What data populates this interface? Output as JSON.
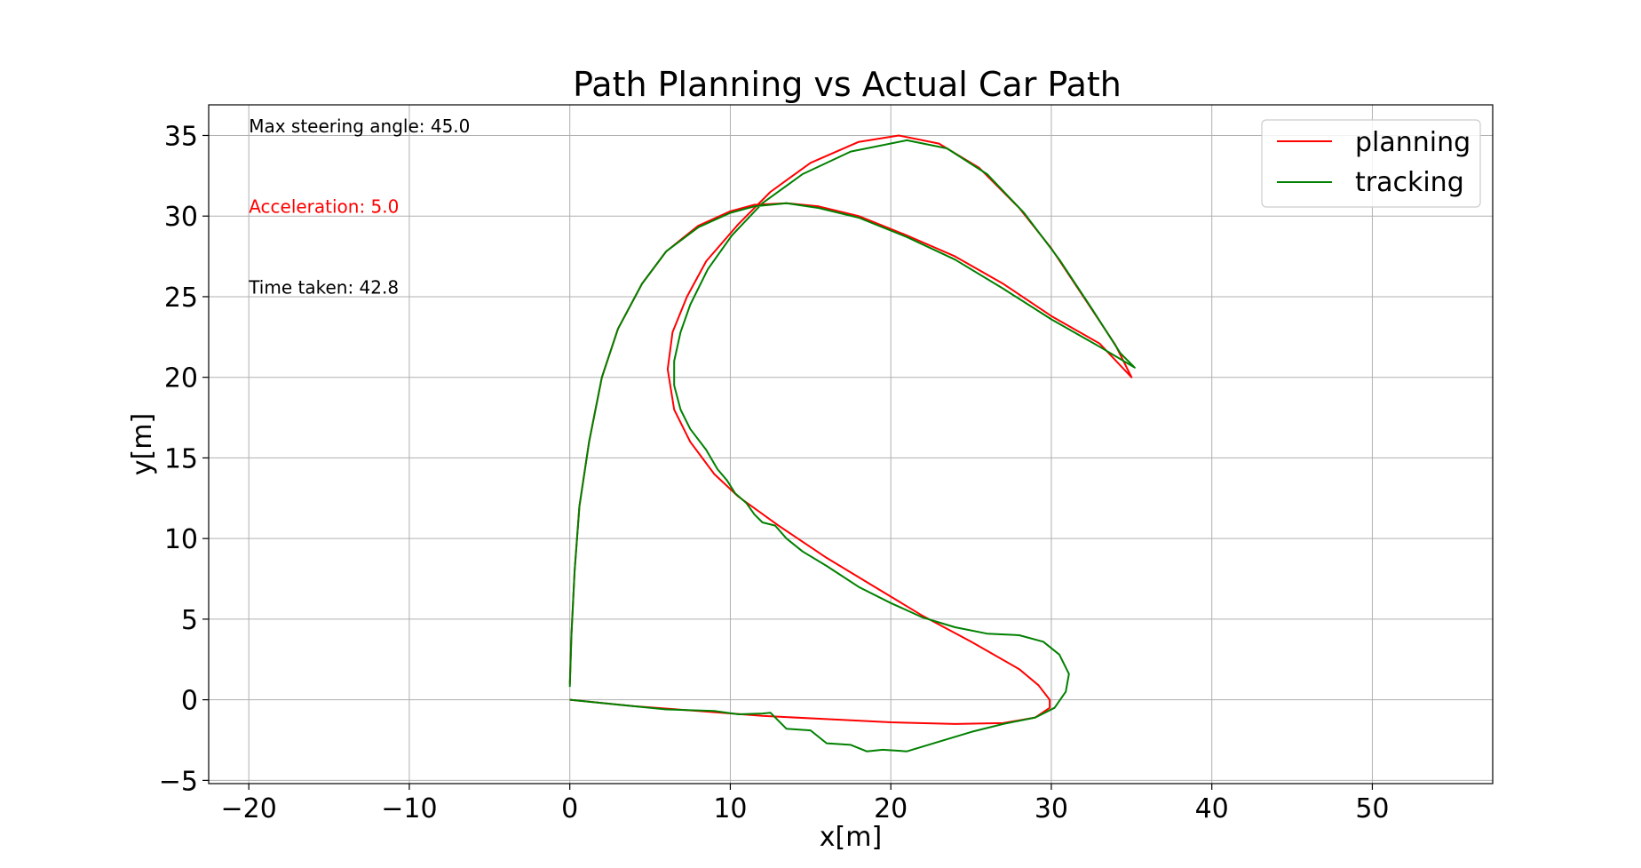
{
  "chart_data": {
    "type": "line",
    "title": "Path Planning vs Actual Car Path",
    "xlabel": "x[m]",
    "ylabel": "y[m]",
    "xlim": [
      -22.5,
      57.5
    ],
    "ylim": [
      -5.2,
      36.9
    ],
    "xticks": [
      -20,
      -10,
      0,
      10,
      20,
      30,
      40,
      50
    ],
    "yticks": [
      -5,
      0,
      5,
      10,
      15,
      20,
      25,
      30,
      35
    ],
    "xtick_labels": [
      "−20",
      "−10",
      "0",
      "10",
      "20",
      "30",
      "40",
      "50"
    ],
    "ytick_labels": [
      "−5",
      "0",
      "5",
      "10",
      "15",
      "20",
      "25",
      "30",
      "35"
    ],
    "grid": true,
    "legend_position": "top-right",
    "annotations": [
      {
        "text": "Max steering angle: 45.0",
        "x": -20,
        "y": 35.2,
        "color": "#000000"
      },
      {
        "text": "Acceleration: 5.0",
        "x": -20,
        "y": 30.2,
        "color": "#ff0000"
      },
      {
        "text": "Time taken: 42.8",
        "x": -20,
        "y": 25.2,
        "color": "#000000"
      }
    ],
    "series": [
      {
        "name": "planning",
        "color": "#ff0000",
        "points": [
          [
            0,
            0
          ],
          [
            4,
            -0.4
          ],
          [
            8,
            -0.7
          ],
          [
            12,
            -1.0
          ],
          [
            16,
            -1.2
          ],
          [
            20,
            -1.4
          ],
          [
            24,
            -1.5
          ],
          [
            27,
            -1.45
          ],
          [
            29,
            -1.1
          ],
          [
            29.9,
            -0.5
          ],
          [
            29.9,
            0
          ],
          [
            29.2,
            0.9
          ],
          [
            28,
            1.9
          ],
          [
            25,
            3.6
          ],
          [
            22,
            5.2
          ],
          [
            19,
            7.0
          ],
          [
            16,
            8.8
          ],
          [
            13,
            10.8
          ],
          [
            10.5,
            12.6
          ],
          [
            9,
            14.0
          ],
          [
            7.5,
            16.0
          ],
          [
            6.5,
            18.0
          ],
          [
            6.1,
            20.5
          ],
          [
            6.4,
            22.8
          ],
          [
            7.3,
            25.0
          ],
          [
            8.5,
            27.2
          ],
          [
            10.5,
            29.5
          ],
          [
            12.5,
            31.5
          ],
          [
            15,
            33.3
          ],
          [
            18,
            34.6
          ],
          [
            20.5,
            35.0
          ],
          [
            23,
            34.5
          ],
          [
            25.5,
            33.0
          ],
          [
            28,
            30.5
          ],
          [
            30,
            28.0
          ],
          [
            32,
            25.0
          ],
          [
            34,
            22.0
          ],
          [
            35,
            20.0
          ],
          [
            33,
            22.1
          ],
          [
            30,
            23.8
          ],
          [
            27,
            25.8
          ],
          [
            24,
            27.5
          ],
          [
            21,
            28.8
          ],
          [
            18,
            30.0
          ],
          [
            15.5,
            30.6
          ],
          [
            13.5,
            30.8
          ],
          [
            11.5,
            30.7
          ],
          [
            10,
            30.3
          ],
          [
            8,
            29.4
          ],
          [
            6,
            27.8
          ],
          [
            4.5,
            25.8
          ],
          [
            3,
            23.0
          ],
          [
            2,
            20.0
          ],
          [
            1.2,
            16.0
          ],
          [
            0.6,
            12.0
          ],
          [
            0.3,
            8.0
          ],
          [
            0.1,
            4.0
          ],
          [
            0,
            1.0
          ]
        ]
      },
      {
        "name": "tracking",
        "color": "#008000",
        "points": [
          [
            0,
            0
          ],
          [
            3,
            -0.3
          ],
          [
            6,
            -0.6
          ],
          [
            9,
            -0.7
          ],
          [
            10.5,
            -0.9
          ],
          [
            12,
            -0.85
          ],
          [
            12.5,
            -0.8
          ],
          [
            13.5,
            -1.8
          ],
          [
            15,
            -1.9
          ],
          [
            16,
            -2.7
          ],
          [
            17.5,
            -2.8
          ],
          [
            18.5,
            -3.2
          ],
          [
            19.5,
            -3.1
          ],
          [
            21,
            -3.2
          ],
          [
            23,
            -2.6
          ],
          [
            25,
            -2.0
          ],
          [
            27,
            -1.5
          ],
          [
            29,
            -1.1
          ],
          [
            30.2,
            -0.5
          ],
          [
            30.9,
            0.5
          ],
          [
            31.1,
            1.6
          ],
          [
            30.5,
            2.8
          ],
          [
            29.5,
            3.6
          ],
          [
            28,
            4.0
          ],
          [
            26,
            4.1
          ],
          [
            24,
            4.5
          ],
          [
            22,
            5.1
          ],
          [
            20,
            6.0
          ],
          [
            18,
            7.0
          ],
          [
            16,
            8.3
          ],
          [
            14.5,
            9.2
          ],
          [
            13.5,
            10.0
          ],
          [
            12.8,
            10.8
          ],
          [
            12,
            11.0
          ],
          [
            11.5,
            11.5
          ],
          [
            11,
            12.2
          ],
          [
            10.3,
            12.8
          ],
          [
            9.8,
            13.6
          ],
          [
            9.2,
            14.3
          ],
          [
            8.5,
            15.5
          ],
          [
            7.5,
            16.8
          ],
          [
            6.9,
            18.0
          ],
          [
            6.5,
            19.5
          ],
          [
            6.5,
            21.0
          ],
          [
            6.9,
            22.8
          ],
          [
            7.5,
            24.5
          ],
          [
            8.6,
            26.7
          ],
          [
            10.1,
            28.8
          ],
          [
            12.0,
            30.8
          ],
          [
            14.5,
            32.6
          ],
          [
            17.5,
            34.0
          ],
          [
            21,
            34.7
          ],
          [
            23.5,
            34.2
          ],
          [
            26,
            32.6
          ],
          [
            28.3,
            30.2
          ],
          [
            30.5,
            27.3
          ],
          [
            32.5,
            24.3
          ],
          [
            34.3,
            21.5
          ],
          [
            35.2,
            20.6
          ],
          [
            33,
            21.9
          ],
          [
            30,
            23.6
          ],
          [
            27,
            25.5
          ],
          [
            24,
            27.3
          ],
          [
            21,
            28.7
          ],
          [
            18,
            29.9
          ],
          [
            15.5,
            30.5
          ],
          [
            13.5,
            30.8
          ],
          [
            11.5,
            30.6
          ],
          [
            10,
            30.2
          ],
          [
            8,
            29.3
          ],
          [
            6,
            27.8
          ],
          [
            4.5,
            25.8
          ],
          [
            3,
            23.0
          ],
          [
            2,
            20.0
          ],
          [
            1.2,
            16.0
          ],
          [
            0.6,
            12.0
          ],
          [
            0.3,
            8.0
          ],
          [
            0.1,
            4.0
          ],
          [
            0,
            0.8
          ]
        ]
      }
    ]
  }
}
